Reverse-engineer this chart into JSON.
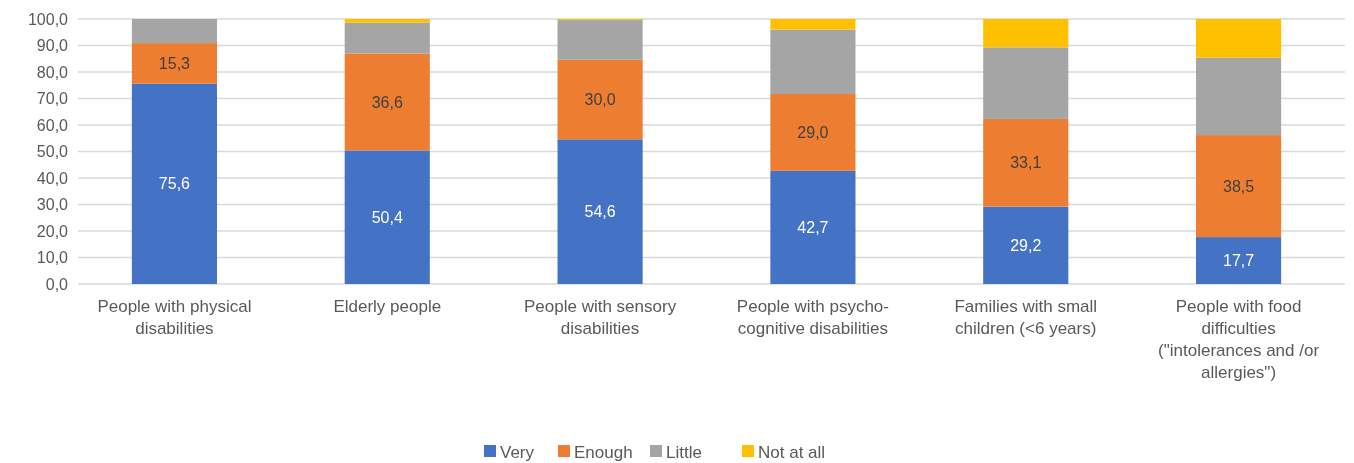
{
  "chart_data": {
    "type": "bar",
    "stacked": true,
    "grid": "y",
    "legend": "bottom",
    "categories": [
      "People with physical disabilities",
      "Elderly people",
      "People with sensory disabilities",
      "People with psycho-cognitive disabilities",
      "Families with small children (<6 years)",
      "People with food difficulties (\"intolerances and /or allergies\")"
    ],
    "series": [
      {
        "name": "Very",
        "color": "#4472c4",
        "values": [
          75.6,
          50.4,
          54.6,
          42.7,
          29.2,
          17.7
        ],
        "value_labels": [
          "75,6",
          "50,4",
          "54,6",
          "42,7",
          "29,2",
          "17,7"
        ]
      },
      {
        "name": "Enough",
        "color": "#ed7d31",
        "values": [
          15.3,
          36.6,
          30.0,
          29.0,
          33.1,
          38.5
        ],
        "value_labels": [
          "15,3",
          "36,6",
          "30,0",
          "29,0",
          "33,1",
          "38,5"
        ]
      },
      {
        "name": "Little",
        "color": "#a5a5a5",
        "values": [
          9.1,
          11.6,
          15.0,
          24.3,
          27.0,
          29.2
        ]
      },
      {
        "name": "Not at all",
        "color": "#ffc000",
        "values": [
          0,
          1.4,
          0.4,
          4.0,
          10.7,
          14.6
        ]
      }
    ],
    "ylim": [
      0,
      100
    ],
    "yticks": [
      {
        "value": 0,
        "label": "0,0"
      },
      {
        "value": 10,
        "label": "10,0"
      },
      {
        "value": 20,
        "label": "20,0"
      },
      {
        "value": 30,
        "label": "30,0"
      },
      {
        "value": 40,
        "label": "40,0"
      },
      {
        "value": 50,
        "label": "50,0"
      },
      {
        "value": 60,
        "label": "60,0"
      },
      {
        "value": 70,
        "label": "70,0"
      },
      {
        "value": 80,
        "label": "80,0"
      },
      {
        "value": 90,
        "label": "90,0"
      },
      {
        "value": 100,
        "label": "100,0"
      }
    ]
  }
}
